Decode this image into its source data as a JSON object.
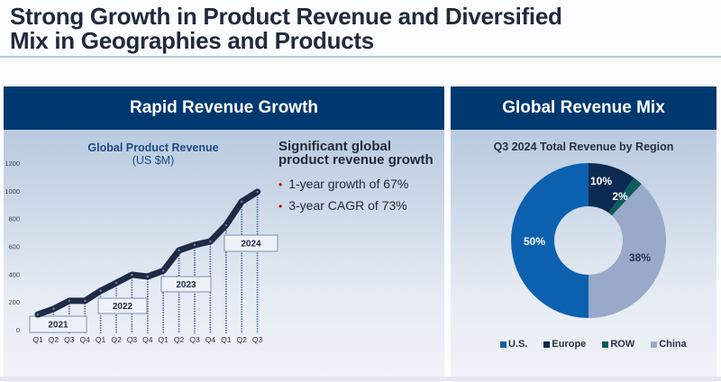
{
  "page": {
    "title_line1": "Strong Growth in Product Revenue and Diversified",
    "title_line2": "Mix in Geographies and Products"
  },
  "left_panel": {
    "header": "Rapid Revenue Growth",
    "chart_title": "Global Product Revenue",
    "chart_subtitle": "(US $M)",
    "notes_heading": "Significant global product revenue growth",
    "bullets": [
      "1-year growth of 67%",
      "3-year CAGR of 73%"
    ],
    "bullet_color": "#c00000"
  },
  "right_panel": {
    "header": "Global Revenue Mix",
    "chart_title": "Q3 2024 Total Revenue by Region"
  },
  "colors": {
    "header_bg": "#003870",
    "line": "#1f2a44",
    "us": "#0b61b0",
    "europe": "#0c2a52",
    "row": "#0f5a5a",
    "china": "#98a9c9"
  },
  "chart_data": [
    {
      "type": "line",
      "title": "Global Product Revenue",
      "subtitle": "(US $M)",
      "xlabel": "",
      "ylabel": "US $M",
      "ylim": [
        0,
        1200
      ],
      "yticks": [
        0,
        200,
        400,
        600,
        800,
        1000,
        1200
      ],
      "grid": false,
      "x": [
        "Q1",
        "Q2",
        "Q3",
        "Q4",
        "Q1",
        "Q2",
        "Q3",
        "Q4",
        "Q1",
        "Q2",
        "Q3",
        "Q4",
        "Q1",
        "Q2",
        "Q3"
      ],
      "year_groups": [
        {
          "label": "2021",
          "start": 0,
          "end": 3
        },
        {
          "label": "2022",
          "start": 4,
          "end": 7
        },
        {
          "label": "2023",
          "start": 8,
          "end": 11
        },
        {
          "label": "2024",
          "start": 12,
          "end": 14
        }
      ],
      "series": [
        {
          "name": "Global Product Revenue",
          "values": [
            110,
            150,
            208,
            208,
            280,
            337,
            396,
            383,
            425,
            571,
            610,
            636,
            753,
            922,
            993
          ]
        }
      ]
    },
    {
      "type": "pie",
      "style": "donut",
      "title": "Q3 2024 Total Revenue by Region",
      "legend_position": "bottom",
      "slices": [
        {
          "name": "Europe",
          "value": 10,
          "label": "10%",
          "color": "#0c2a52"
        },
        {
          "name": "ROW",
          "value": 2,
          "label": "2%",
          "color": "#0f5a5a"
        },
        {
          "name": "China",
          "value": 38,
          "label": "38%",
          "color": "#98a9c9"
        },
        {
          "name": "U.S.",
          "value": 50,
          "label": "50%",
          "color": "#0b61b0"
        }
      ],
      "legend": [
        "U.S.",
        "Europe",
        "ROW",
        "China"
      ]
    }
  ]
}
